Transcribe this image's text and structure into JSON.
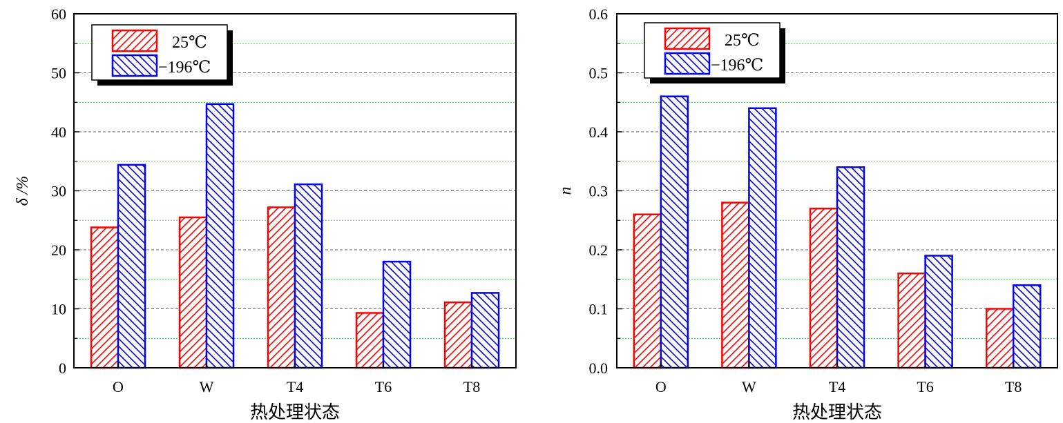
{
  "colors": {
    "red": "#ff0000",
    "blue": "#0000ee",
    "major_grid": "#666666",
    "minor_grid": "#33cc33"
  },
  "chart_data": [
    {
      "type": "bar",
      "categories": [
        "O",
        "W",
        "T4",
        "T6",
        "T8"
      ],
      "xlabel": "热处理状态",
      "ylabel": "δ /%",
      "ylim": [
        0,
        60
      ],
      "yticks": [
        0,
        10,
        20,
        30,
        40,
        50,
        60
      ],
      "ytick_labels": [
        "0",
        "10",
        "20",
        "30",
        "40",
        "50",
        "60"
      ],
      "grid": true,
      "legend_position": "top-left",
      "series": [
        {
          "name": "25℃",
          "color": "#ff0000",
          "hatch": "forward-diagonal",
          "values": [
            23.8,
            25.5,
            27.2,
            9.3,
            11.1
          ]
        },
        {
          "name": "−196℃",
          "color": "#0000ee",
          "hatch": "backward-diagonal",
          "values": [
            34.4,
            44.7,
            31.1,
            18.0,
            12.7
          ]
        }
      ]
    },
    {
      "type": "bar",
      "categories": [
        "O",
        "W",
        "T4",
        "T6",
        "T8"
      ],
      "xlabel": "热处理状态",
      "ylabel": "n",
      "ylim": [
        0,
        0.6
      ],
      "yticks": [
        0,
        0.1,
        0.2,
        0.3,
        0.4,
        0.5,
        0.6
      ],
      "ytick_labels": [
        "0.0",
        "0.1",
        "0.2",
        "0.3",
        "0.4",
        "0.5",
        "0.6"
      ],
      "grid": true,
      "legend_position": "top-left",
      "series": [
        {
          "name": "25℃",
          "color": "#ff0000",
          "hatch": "forward-diagonal",
          "values": [
            0.26,
            0.28,
            0.27,
            0.16,
            0.1
          ]
        },
        {
          "name": "−196℃",
          "color": "#0000ee",
          "hatch": "backward-diagonal",
          "values": [
            0.46,
            0.44,
            0.34,
            0.19,
            0.14
          ]
        }
      ]
    }
  ]
}
